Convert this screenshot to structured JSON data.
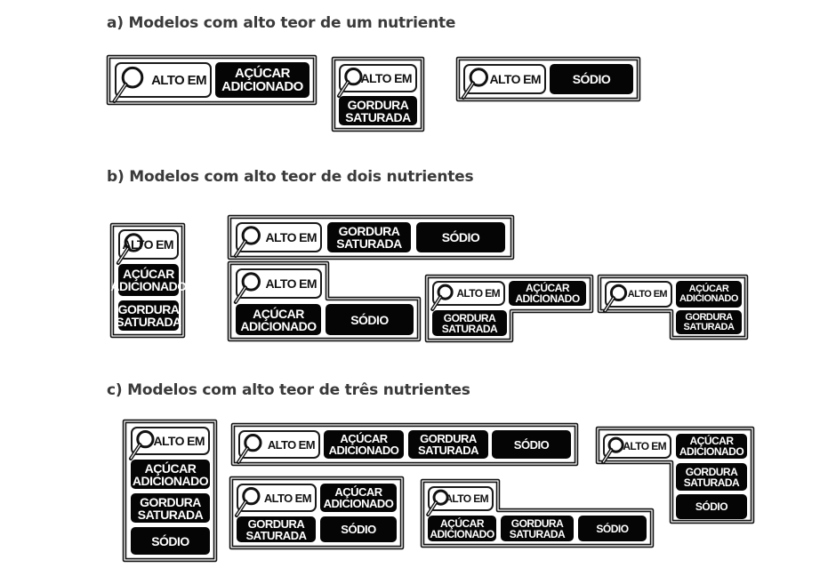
{
  "alto_em": "ALTO EM",
  "sections": [
    {
      "title": "a) Modelos com alto teor de um nutriente",
      "labels": [
        {
          "nutrients": [
            "AÇÚCAR\nADICIONADO"
          ]
        },
        {
          "nutrients": [
            "GORDURA\nSATURADA"
          ]
        },
        {
          "nutrients": [
            "SÓDIO"
          ]
        }
      ]
    },
    {
      "title": "b) Modelos com alto teor de dois nutrientes",
      "labels": [
        {
          "nutrients": [
            "AÇÚCAR\nADICIONADO",
            "GORDURA\nSATURADA"
          ]
        },
        {
          "nutrients": [
            "GORDURA\nSATURADA",
            "SÓDIO"
          ]
        },
        {
          "nutrients": [
            "AÇÚCAR\nADICIONADO",
            "SÓDIO"
          ]
        },
        {
          "nutrients": [
            "AÇÚCAR\nADICIONADO",
            "GORDURA\nSATURADA"
          ]
        },
        {
          "nutrients": [
            "AÇÚCAR\nADICIONADO",
            "GORDURA\nSATURADA"
          ]
        }
      ]
    },
    {
      "title": "c) Modelos com alto teor de três nutrientes",
      "labels": [
        {
          "nutrients": [
            "AÇÚCAR\nADICIONADO",
            "GORDURA\nSATURADA",
            "SÓDIO"
          ]
        },
        {
          "nutrients": [
            "AÇÚCAR\nADICIONADO",
            "GORDURA\nSATURADA",
            "SÓDIO"
          ]
        },
        {
          "nutrients": [
            "AÇÚCAR\nADICIONADO",
            "GORDURA\nSATURADA",
            "SÓDIO"
          ]
        },
        {
          "nutrients": [
            "AÇÚCAR\nADICIONADO",
            "GORDURA\nSATURADA",
            "SÓDIO"
          ]
        },
        {
          "nutrients": [
            "AÇÚCAR\nADICIONADO",
            "GORDURA\nSATURADA",
            "SÓDIO"
          ]
        }
      ]
    }
  ],
  "colors": {
    "label_black": "#050505",
    "title_gray": "#3a3a3a"
  }
}
